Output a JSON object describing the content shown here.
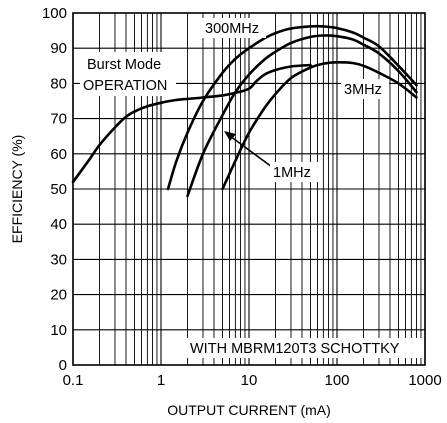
{
  "chart_data": {
    "type": "line",
    "title": "",
    "xlabel": "OUTPUT CURRENT (mA)",
    "ylabel": "EFFICIENCY (%)",
    "x_scale": "log",
    "xlim": [
      0.1,
      1000
    ],
    "ylim": [
      0,
      100
    ],
    "grid": true,
    "x_ticks": [
      0.1,
      1,
      10,
      100,
      1000
    ],
    "x_tick_labels": [
      "0.1",
      "1",
      "10",
      "100",
      "1000"
    ],
    "y_ticks": [
      0,
      10,
      20,
      30,
      40,
      50,
      60,
      70,
      80,
      90,
      100
    ],
    "y_tick_labels": [
      "0",
      "10",
      "20",
      "30",
      "40",
      "50",
      "60",
      "70",
      "80",
      "90",
      "100"
    ],
    "series": [
      {
        "x": [
          0.1,
          0.15,
          0.2,
          0.3,
          0.4,
          0.5,
          0.7,
          1,
          1.5,
          2,
          3,
          5,
          7,
          10,
          12,
          15,
          20,
          30,
          50
        ],
        "y": [
          52,
          58,
          62.5,
          67.5,
          70.5,
          72,
          73.5,
          74.5,
          75.3,
          75.6,
          76,
          76.6,
          77.3,
          78.5,
          80.5,
          82.5,
          83.8,
          84.8,
          85.2
        ]
      },
      {
        "x": [
          1.2,
          1.5,
          2,
          3,
          5,
          7,
          10,
          15,
          20,
          30,
          50,
          70,
          100,
          150,
          200,
          300,
          500,
          800
        ],
        "y": [
          50,
          58,
          66,
          75,
          83,
          87,
          90,
          92.8,
          94.3,
          95.6,
          96.2,
          96.2,
          95.7,
          94.5,
          93,
          90.5,
          85,
          79.5
        ]
      },
      {
        "x": [
          2,
          3,
          5,
          7,
          10,
          15,
          20,
          30,
          50,
          70,
          100,
          150,
          200,
          300,
          500,
          800
        ],
        "y": [
          48,
          60,
          71,
          77.5,
          82.5,
          86.8,
          89,
          91.5,
          93.2,
          93.6,
          93.4,
          92.5,
          91,
          88.5,
          83.5,
          77.5
        ]
      },
      {
        "x": [
          5,
          7,
          10,
          15,
          20,
          30,
          50,
          70,
          100,
          150,
          200,
          300,
          500,
          800
        ],
        "y": [
          50,
          58,
          66,
          73,
          77,
          81.5,
          84.5,
          85.6,
          86,
          85.8,
          85,
          83,
          80,
          76
        ]
      }
    ],
    "annotations": {
      "burst_line1": "Burst Mode",
      "burst_line2": "OPERATION",
      "f300": "300MHz",
      "f3": "3MHz",
      "f1": "1MHz",
      "diode": "WITH MBRM120T3 SCHOTTKY"
    }
  }
}
